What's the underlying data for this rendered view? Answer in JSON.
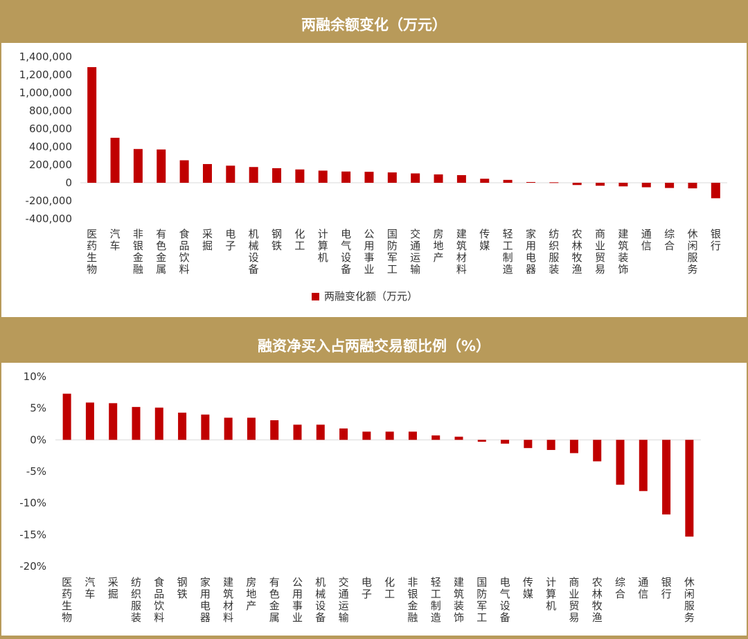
{
  "chart_data": [
    {
      "type": "bar",
      "title": "两融余额变化（万元）",
      "legend": "两融变化额（万元）",
      "legend_position": "bottom",
      "ylim": [
        -400000,
        1400000
      ],
      "yticks": [
        1400000,
        1200000,
        1000000,
        800000,
        600000,
        400000,
        200000,
        0,
        -200000,
        -400000
      ],
      "ytick_labels": [
        "1,400,000",
        "1,200,000",
        "1,000,000",
        "800,000",
        "600,000",
        "400,000",
        "200,000",
        "0",
        "-200,000",
        "-400,000"
      ],
      "categories": [
        "医药生物",
        "汽车",
        "非银金融",
        "有色金属",
        "食品饮料",
        "采掘",
        "电子",
        "机械设备",
        "钢铁",
        "化工",
        "计算机",
        "电气设备",
        "公用事业",
        "国防军工",
        "交通运输",
        "房地产",
        "建筑材料",
        "传媒",
        "轻工制造",
        "家用电器",
        "纺织服装",
        "农林牧渔",
        "商业贸易",
        "建筑装饰",
        "通信",
        "综合",
        "休闲服务",
        "银行"
      ],
      "series": [
        {
          "name": "两融变化额（万元）",
          "color": "#c00000",
          "values": [
            1285000,
            500000,
            375000,
            370000,
            250000,
            208000,
            190000,
            175000,
            162000,
            148000,
            135000,
            125000,
            122000,
            115000,
            104000,
            93000,
            85000,
            45000,
            32000,
            8000,
            5000,
            -25000,
            -33000,
            -40000,
            -50000,
            -58000,
            -62000,
            -172000
          ]
        }
      ]
    },
    {
      "type": "bar",
      "title": "融资净买入占两融交易额比例（%）",
      "ylim": [
        -20,
        10
      ],
      "yticks": [
        10,
        5,
        0,
        -5,
        -10,
        -15,
        -20
      ],
      "ytick_labels": [
        "10%",
        "5%",
        "0%",
        "-5%",
        "-10%",
        "-15%",
        "-20%"
      ],
      "categories": [
        "医药生物",
        "汽车",
        "采掘",
        "纺织服装",
        "食品饮料",
        "钢铁",
        "家用电器",
        "建筑材料",
        "房地产",
        "有色金属",
        "公用事业",
        "机械设备",
        "交通运输",
        "电子",
        "化工",
        "非银金融",
        "轻工制造",
        "建筑装饰",
        "国防军工",
        "电气设备",
        "传媒",
        "计算机",
        "商业贸易",
        "农林牧渔",
        "综合",
        "通信",
        "银行",
        "休闲服务"
      ],
      "series": [
        {
          "color": "#c00000",
          "values": [
            7.3,
            5.9,
            5.8,
            5.2,
            5.1,
            4.3,
            4.0,
            3.5,
            3.5,
            3.1,
            2.4,
            2.4,
            1.8,
            1.3,
            1.3,
            1.3,
            0.7,
            0.5,
            -0.3,
            -0.6,
            -1.3,
            -1.6,
            -2.1,
            -3.4,
            -7.1,
            -8.1,
            -11.8,
            -15.3
          ]
        }
      ]
    }
  ]
}
